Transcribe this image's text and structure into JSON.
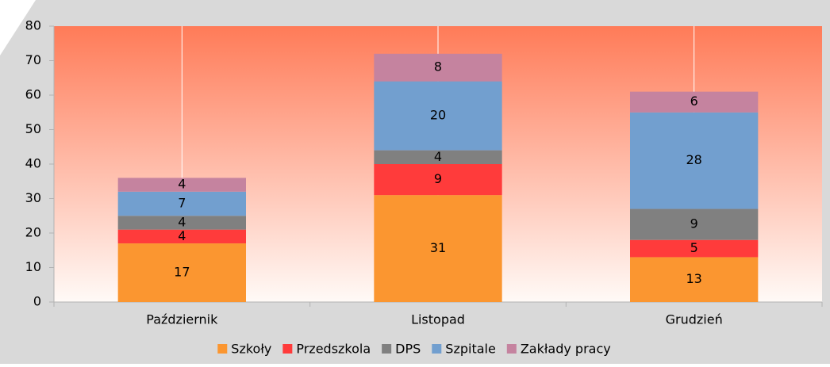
{
  "chart_data": {
    "type": "stacked_bar",
    "categories": [
      "Październik",
      "Listopad",
      "Grudzień"
    ],
    "series": [
      {
        "name": "Szkoły",
        "color": "#fb9630",
        "values": [
          17,
          31,
          13
        ]
      },
      {
        "name": "Przedszkola",
        "color": "#ff3b3b",
        "values": [
          4,
          9,
          5
        ]
      },
      {
        "name": "DPS",
        "color": "#808080",
        "values": [
          4,
          4,
          9
        ]
      },
      {
        "name": "Szpitale",
        "color": "#729fcf",
        "values": [
          7,
          20,
          28
        ]
      },
      {
        "name": "Zakłady pracy",
        "color": "#c5839f",
        "values": [
          4,
          8,
          6
        ]
      }
    ],
    "ylim": [
      0,
      80
    ],
    "yticks": [
      0,
      10,
      20,
      30,
      40,
      50,
      60,
      70,
      80
    ],
    "legend": "bottom"
  }
}
